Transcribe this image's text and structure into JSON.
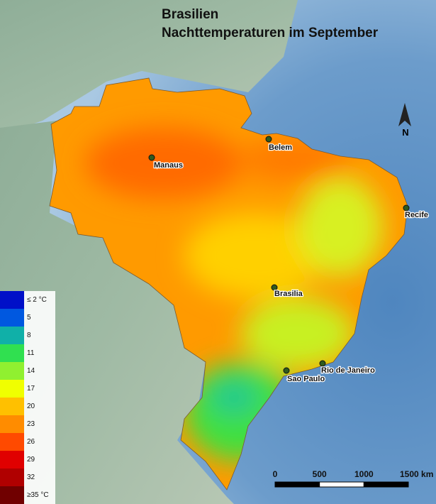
{
  "title": {
    "line1": "Brasilien",
    "line2": "Nachttemperaturen im September"
  },
  "north": "N",
  "cities": [
    "Manaus",
    "Belem",
    "Recife",
    "Brasilia",
    "Rio de Janeiro",
    "Sao Paulo"
  ],
  "legend": [
    {
      "label": "≤ 2 °C",
      "color": "#0010c8"
    },
    {
      "label": "5",
      "color": "#0058e0"
    },
    {
      "label": "8",
      "color": "#10b0a8"
    },
    {
      "label": "11",
      "color": "#30e050"
    },
    {
      "label": "14",
      "color": "#90f030"
    },
    {
      "label": "17",
      "color": "#f0ff00"
    },
    {
      "label": "20",
      "color": "#ffc000"
    },
    {
      "label": "23",
      "color": "#ff8c00"
    },
    {
      "label": "26",
      "color": "#ff4a00"
    },
    {
      "label": "29",
      "color": "#e00000"
    },
    {
      "label": "32",
      "color": "#b00000"
    },
    {
      "label": "≥35 °C",
      "color": "#700000"
    }
  ],
  "scale": [
    "0",
    "500",
    "1000",
    "1500 km"
  ]
}
